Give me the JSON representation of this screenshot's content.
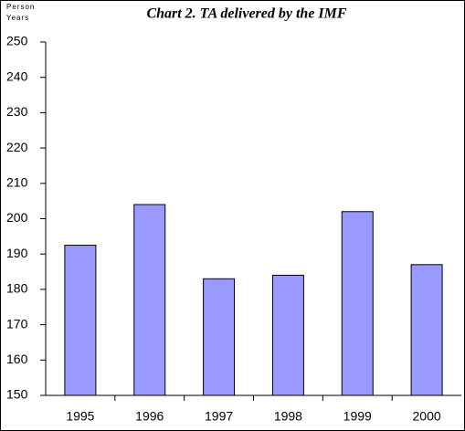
{
  "chart_data": {
    "type": "bar",
    "title": "Chart 2.  TA delivered by the IMF",
    "y_label_lines": [
      "Person",
      "Years"
    ],
    "categories": [
      "1995",
      "1996",
      "1997",
      "1998",
      "1999",
      "2000"
    ],
    "values": [
      192.5,
      204,
      183,
      184,
      202,
      187
    ],
    "color": "#9999ff",
    "ylim": [
      150,
      250
    ],
    "yticks": [
      150,
      160,
      170,
      180,
      190,
      200,
      210,
      220,
      230,
      240,
      250
    ],
    "grid": false
  }
}
